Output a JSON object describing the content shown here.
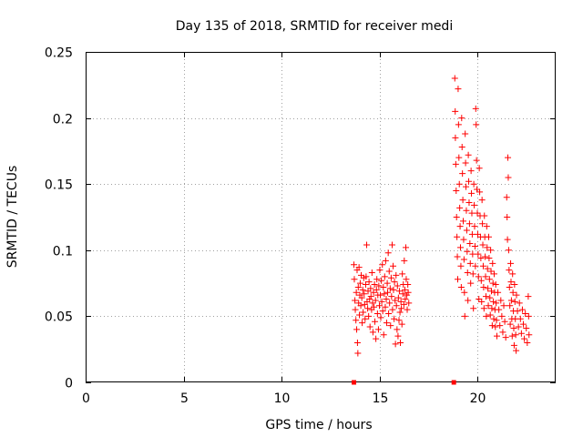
{
  "chart_data": {
    "type": "scatter",
    "title": "Day 135 of 2018, SRMTID for receiver medi",
    "xlabel": "GPS time / hours",
    "ylabel": "SRMTID / TECUs",
    "xlim": [
      0,
      24
    ],
    "ylim": [
      0,
      0.25
    ],
    "xticks": [
      0,
      5,
      10,
      15,
      20
    ],
    "xtick_labels": [
      "0",
      "5",
      "10",
      "15",
      "20"
    ],
    "yticks": [
      0,
      0.05,
      0.1,
      0.15,
      0.2,
      0.25
    ],
    "ytick_labels": [
      "0",
      "0.05",
      "0.1",
      "0.15",
      "0.2",
      "0.25"
    ],
    "grid": true,
    "marker": "+",
    "color": "#ff0000",
    "zero_markers": [
      {
        "x": 13.7,
        "y": 0
      },
      {
        "x": 18.8,
        "y": 0
      }
    ],
    "series": [
      {
        "name": "SRMTID",
        "points": [
          [
            13.7,
            0.089
          ],
          [
            13.72,
            0.078
          ],
          [
            13.75,
            0.062
          ],
          [
            13.77,
            0.055
          ],
          [
            13.8,
            0.047
          ],
          [
            13.82,
            0.068
          ],
          [
            13.84,
            0.04
          ],
          [
            13.86,
            0.085
          ],
          [
            13.88,
            0.03
          ],
          [
            13.9,
            0.022
          ],
          [
            13.92,
            0.072
          ],
          [
            13.94,
            0.06
          ],
          [
            13.96,
            0.087
          ],
          [
            13.98,
            0.051
          ],
          [
            14.0,
            0.066
          ],
          [
            14.02,
            0.075
          ],
          [
            14.05,
            0.058
          ],
          [
            14.07,
            0.081
          ],
          [
            14.1,
            0.064
          ],
          [
            14.12,
            0.045
          ],
          [
            14.15,
            0.07
          ],
          [
            14.17,
            0.053
          ],
          [
            14.2,
            0.079
          ],
          [
            14.22,
            0.067
          ],
          [
            14.25,
            0.059
          ],
          [
            14.27,
            0.048
          ],
          [
            14.3,
            0.074
          ],
          [
            14.32,
            0.08
          ],
          [
            14.35,
            0.104
          ],
          [
            14.37,
            0.061
          ],
          [
            14.4,
            0.056
          ],
          [
            14.42,
            0.069
          ],
          [
            14.45,
            0.05
          ],
          [
            14.47,
            0.076
          ],
          [
            14.5,
            0.063
          ],
          [
            14.52,
            0.042
          ],
          [
            14.55,
            0.071
          ],
          [
            14.57,
            0.065
          ],
          [
            14.6,
            0.055
          ],
          [
            14.62,
            0.083
          ],
          [
            14.65,
            0.06
          ],
          [
            14.67,
            0.038
          ],
          [
            14.7,
            0.068
          ],
          [
            14.72,
            0.057
          ],
          [
            14.75,
            0.074
          ],
          [
            14.77,
            0.046
          ],
          [
            14.8,
            0.062
          ],
          [
            14.82,
            0.033
          ],
          [
            14.85,
            0.07
          ],
          [
            14.87,
            0.078
          ],
          [
            14.9,
            0.052
          ],
          [
            14.92,
            0.066
          ],
          [
            14.95,
            0.04
          ],
          [
            14.97,
            0.073
          ],
          [
            15.0,
            0.058
          ],
          [
            15.02,
            0.085
          ],
          [
            15.05,
            0.066
          ],
          [
            15.07,
            0.049
          ],
          [
            15.1,
            0.077
          ],
          [
            15.12,
            0.061
          ],
          [
            15.15,
            0.089
          ],
          [
            15.17,
            0.054
          ],
          [
            15.2,
            0.072
          ],
          [
            15.22,
            0.036
          ],
          [
            15.25,
            0.067
          ],
          [
            15.27,
            0.08
          ],
          [
            15.3,
            0.057
          ],
          [
            15.32,
            0.092
          ],
          [
            15.35,
            0.063
          ],
          [
            15.37,
            0.045
          ],
          [
            15.4,
            0.075
          ],
          [
            15.42,
            0.068
          ],
          [
            15.45,
            0.098
          ],
          [
            15.47,
            0.052
          ],
          [
            15.5,
            0.084
          ],
          [
            15.52,
            0.06
          ],
          [
            15.55,
            0.071
          ],
          [
            15.57,
            0.043
          ],
          [
            15.6,
            0.079
          ],
          [
            15.62,
            0.065
          ],
          [
            15.65,
            0.104
          ],
          [
            15.67,
            0.055
          ],
          [
            15.7,
            0.088
          ],
          [
            15.72,
            0.07
          ],
          [
            15.75,
            0.048
          ],
          [
            15.77,
            0.076
          ],
          [
            15.8,
            0.062
          ],
          [
            15.82,
            0.029
          ],
          [
            15.85,
            0.081
          ],
          [
            15.87,
            0.058
          ],
          [
            15.9,
            0.04
          ],
          [
            15.92,
            0.073
          ],
          [
            15.95,
            0.035
          ],
          [
            15.97,
            0.064
          ],
          [
            16.0,
            0.047
          ],
          [
            16.02,
            0.069
          ],
          [
            16.05,
            0.053
          ],
          [
            16.07,
            0.03
          ],
          [
            16.1,
            0.061
          ],
          [
            16.12,
            0.056
          ],
          [
            16.15,
            0.044
          ],
          [
            16.17,
            0.082
          ],
          [
            16.2,
            0.067
          ],
          [
            16.22,
            0.074
          ],
          [
            16.25,
            0.059
          ],
          [
            16.27,
            0.092
          ],
          [
            16.3,
            0.07
          ],
          [
            16.32,
            0.063
          ],
          [
            16.35,
            0.102
          ],
          [
            16.37,
            0.078
          ],
          [
            16.4,
            0.066
          ],
          [
            16.42,
            0.055
          ],
          [
            16.45,
            0.074
          ],
          [
            16.47,
            0.068
          ],
          [
            16.5,
            0.06
          ],
          [
            18.85,
            0.23
          ],
          [
            18.87,
            0.205
          ],
          [
            18.88,
            0.185
          ],
          [
            18.9,
            0.165
          ],
          [
            18.92,
            0.145
          ],
          [
            18.94,
            0.125
          ],
          [
            18.96,
            0.11
          ],
          [
            18.98,
            0.095
          ],
          [
            19.0,
            0.078
          ],
          [
            19.02,
            0.222
          ],
          [
            19.04,
            0.195
          ],
          [
            19.06,
            0.17
          ],
          [
            19.08,
            0.15
          ],
          [
            19.1,
            0.132
          ],
          [
            19.12,
            0.118
          ],
          [
            19.14,
            0.102
          ],
          [
            19.16,
            0.088
          ],
          [
            19.18,
            0.072
          ],
          [
            19.2,
            0.2
          ],
          [
            19.22,
            0.178
          ],
          [
            19.24,
            0.158
          ],
          [
            19.26,
            0.138
          ],
          [
            19.28,
            0.122
          ],
          [
            19.3,
            0.108
          ],
          [
            19.32,
            0.093
          ],
          [
            19.34,
            0.068
          ],
          [
            19.36,
            0.05
          ],
          [
            19.38,
            0.188
          ],
          [
            19.4,
            0.166
          ],
          [
            19.42,
            0.148
          ],
          [
            19.44,
            0.13
          ],
          [
            19.46,
            0.115
          ],
          [
            19.48,
            0.099
          ],
          [
            19.5,
            0.083
          ],
          [
            19.52,
            0.062
          ],
          [
            19.54,
            0.172
          ],
          [
            19.56,
            0.152
          ],
          [
            19.58,
            0.136
          ],
          [
            19.6,
            0.12
          ],
          [
            19.62,
            0.105
          ],
          [
            19.64,
            0.09
          ],
          [
            19.66,
            0.075
          ],
          [
            19.68,
            0.16
          ],
          [
            19.7,
            0.143
          ],
          [
            19.72,
            0.128
          ],
          [
            19.74,
            0.112
          ],
          [
            19.76,
            0.097
          ],
          [
            19.78,
            0.082
          ],
          [
            19.8,
            0.056
          ],
          [
            19.82,
            0.15
          ],
          [
            19.84,
            0.134
          ],
          [
            19.86,
            0.118
          ],
          [
            19.88,
            0.103
          ],
          [
            19.9,
            0.088
          ],
          [
            19.92,
            0.207
          ],
          [
            19.94,
            0.195
          ],
          [
            19.96,
            0.168
          ],
          [
            19.98,
            0.146
          ],
          [
            20.0,
            0.128
          ],
          [
            20.02,
            0.112
          ],
          [
            20.04,
            0.097
          ],
          [
            20.06,
            0.08
          ],
          [
            20.08,
            0.063
          ],
          [
            20.1,
            0.162
          ],
          [
            20.12,
            0.144
          ],
          [
            20.14,
            0.126
          ],
          [
            20.16,
            0.11
          ],
          [
            20.18,
            0.094
          ],
          [
            20.2,
            0.077
          ],
          [
            20.22,
            0.061
          ],
          [
            20.24,
            0.138
          ],
          [
            20.26,
            0.12
          ],
          [
            20.28,
            0.104
          ],
          [
            20.3,
            0.088
          ],
          [
            20.32,
            0.072
          ],
          [
            20.34,
            0.056
          ],
          [
            20.36,
            0.126
          ],
          [
            20.38,
            0.11
          ],
          [
            20.4,
            0.095
          ],
          [
            20.42,
            0.08
          ],
          [
            20.44,
            0.065
          ],
          [
            20.46,
            0.05
          ],
          [
            20.48,
            0.118
          ],
          [
            20.5,
            0.102
          ],
          [
            20.52,
            0.086
          ],
          [
            20.54,
            0.071
          ],
          [
            20.56,
            0.058
          ],
          [
            20.58,
            0.11
          ],
          [
            20.6,
            0.094
          ],
          [
            20.62,
            0.078
          ],
          [
            20.64,
            0.064
          ],
          [
            20.66,
            0.051
          ],
          [
            20.68,
            0.1
          ],
          [
            20.7,
            0.084
          ],
          [
            20.72,
            0.069
          ],
          [
            20.74,
            0.056
          ],
          [
            20.76,
            0.043
          ],
          [
            20.78,
            0.09
          ],
          [
            20.8,
            0.075
          ],
          [
            20.82,
            0.061
          ],
          [
            20.84,
            0.048
          ],
          [
            20.86,
            0.082
          ],
          [
            20.88,
            0.068
          ],
          [
            20.9,
            0.055
          ],
          [
            20.92,
            0.042
          ],
          [
            20.94,
            0.074
          ],
          [
            20.96,
            0.06
          ],
          [
            20.98,
            0.047
          ],
          [
            21.0,
            0.035
          ],
          [
            21.05,
            0.068
          ],
          [
            21.1,
            0.055
          ],
          [
            21.15,
            0.043
          ],
          [
            21.2,
            0.062
          ],
          [
            21.25,
            0.05
          ],
          [
            21.3,
            0.038
          ],
          [
            21.35,
            0.058
          ],
          [
            21.4,
            0.046
          ],
          [
            21.45,
            0.034
          ],
          [
            21.5,
            0.14
          ],
          [
            21.52,
            0.125
          ],
          [
            21.54,
            0.108
          ],
          [
            21.56,
            0.17
          ],
          [
            21.58,
            0.155
          ],
          [
            21.6,
            0.1
          ],
          [
            21.62,
            0.085
          ],
          [
            21.64,
            0.072
          ],
          [
            21.66,
            0.058
          ],
          [
            21.68,
            0.044
          ],
          [
            21.7,
            0.09
          ],
          [
            21.72,
            0.076
          ],
          [
            21.74,
            0.062
          ],
          [
            21.76,
            0.048
          ],
          [
            21.78,
            0.035
          ],
          [
            21.8,
            0.082
          ],
          [
            21.82,
            0.068
          ],
          [
            21.84,
            0.054
          ],
          [
            21.86,
            0.041
          ],
          [
            21.88,
            0.028
          ],
          [
            21.9,
            0.074
          ],
          [
            21.92,
            0.061
          ],
          [
            21.94,
            0.048
          ],
          [
            21.96,
            0.036
          ],
          [
            21.98,
            0.024
          ],
          [
            22.0,
            0.066
          ],
          [
            22.05,
            0.054
          ],
          [
            22.1,
            0.042
          ],
          [
            22.15,
            0.06
          ],
          [
            22.2,
            0.048
          ],
          [
            22.25,
            0.037
          ],
          [
            22.3,
            0.055
          ],
          [
            22.35,
            0.044
          ],
          [
            22.4,
            0.033
          ],
          [
            22.45,
            0.052
          ],
          [
            22.5,
            0.041
          ],
          [
            22.55,
            0.03
          ],
          [
            22.6,
            0.065
          ],
          [
            22.62,
            0.05
          ],
          [
            22.64,
            0.036
          ]
        ]
      }
    ]
  }
}
